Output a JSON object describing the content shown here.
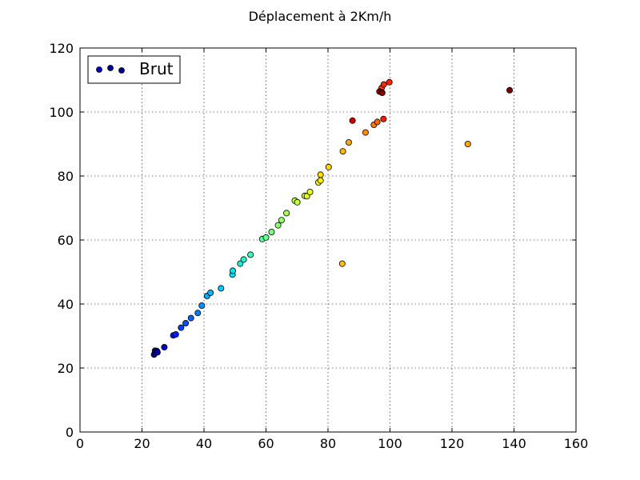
{
  "chart_data": {
    "type": "scatter",
    "title": "Déplacement à 2Km/h",
    "xlabel": "",
    "ylabel": "",
    "xlim": [
      0,
      160
    ],
    "ylim": [
      0,
      120
    ],
    "xticks": [
      0,
      20,
      40,
      60,
      80,
      100,
      120,
      140,
      160
    ],
    "yticks": [
      0,
      20,
      40,
      60,
      80,
      100,
      120
    ],
    "grid": true,
    "legend_position": "top-left",
    "colormap": "jet",
    "series": [
      {
        "name": "Brut",
        "points": [
          {
            "x": 23.9,
            "y": 24.2,
            "color": "#00007f"
          },
          {
            "x": 24.2,
            "y": 25.4,
            "color": "#00008b"
          },
          {
            "x": 24.8,
            "y": 25.3,
            "color": "#000096"
          },
          {
            "x": 25.0,
            "y": 24.9,
            "color": "#0000a8"
          },
          {
            "x": 27.2,
            "y": 26.5,
            "color": "#0000cd"
          },
          {
            "x": 30.1,
            "y": 30.2,
            "color": "#0010ff"
          },
          {
            "x": 30.9,
            "y": 30.5,
            "color": "#0020ff"
          },
          {
            "x": 32.6,
            "y": 32.6,
            "color": "#0040ff"
          },
          {
            "x": 34.1,
            "y": 34.0,
            "color": "#0050ff"
          },
          {
            "x": 35.8,
            "y": 35.6,
            "color": "#0064ff"
          },
          {
            "x": 38.0,
            "y": 37.2,
            "color": "#0080ff"
          },
          {
            "x": 39.3,
            "y": 39.5,
            "color": "#0094ff"
          },
          {
            "x": 41.0,
            "y": 42.5,
            "color": "#00acff"
          },
          {
            "x": 42.1,
            "y": 43.5,
            "color": "#00b8ff"
          },
          {
            "x": 45.5,
            "y": 44.9,
            "color": "#00ccff"
          },
          {
            "x": 49.2,
            "y": 49.2,
            "color": "#00e0f8"
          },
          {
            "x": 49.3,
            "y": 50.4,
            "color": "#0ae4ec"
          },
          {
            "x": 51.7,
            "y": 52.6,
            "color": "#1aecdc"
          },
          {
            "x": 52.8,
            "y": 53.9,
            "color": "#26f4d0"
          },
          {
            "x": 55.0,
            "y": 55.4,
            "color": "#36fcc0"
          },
          {
            "x": 58.8,
            "y": 60.3,
            "color": "#56ffa0"
          },
          {
            "x": 60.0,
            "y": 60.8,
            "color": "#66ff90"
          },
          {
            "x": 61.8,
            "y": 62.5,
            "color": "#76ff80"
          },
          {
            "x": 63.9,
            "y": 64.6,
            "color": "#86ff70"
          },
          {
            "x": 65.0,
            "y": 66.2,
            "color": "#96ff60"
          },
          {
            "x": 66.6,
            "y": 68.4,
            "color": "#a6ff50"
          },
          {
            "x": 69.3,
            "y": 72.3,
            "color": "#b6ff40"
          },
          {
            "x": 70.1,
            "y": 71.8,
            "color": "#c0ff36"
          },
          {
            "x": 72.5,
            "y": 73.8,
            "color": "#d0ff26"
          },
          {
            "x": 73.2,
            "y": 73.7,
            "color": "#dcff1a"
          },
          {
            "x": 74.2,
            "y": 75.0,
            "color": "#e8ff0e"
          },
          {
            "x": 76.9,
            "y": 78.0,
            "color": "#f8f500"
          },
          {
            "x": 77.6,
            "y": 78.6,
            "color": "#fcec00"
          },
          {
            "x": 77.6,
            "y": 80.4,
            "color": "#ffde00"
          },
          {
            "x": 80.2,
            "y": 82.8,
            "color": "#ffd400"
          },
          {
            "x": 84.6,
            "y": 52.6,
            "color": "#ffbf00"
          },
          {
            "x": 84.8,
            "y": 87.7,
            "color": "#ffb800"
          },
          {
            "x": 86.7,
            "y": 90.5,
            "color": "#ffa800"
          },
          {
            "x": 92.1,
            "y": 93.6,
            "color": "#ff8c00"
          },
          {
            "x": 94.8,
            "y": 96.0,
            "color": "#ff7800"
          },
          {
            "x": 95.9,
            "y": 96.9,
            "color": "#ff6800"
          },
          {
            "x": 87.9,
            "y": 97.3,
            "color": "#d40000"
          },
          {
            "x": 97.9,
            "y": 97.8,
            "color": "#ff1a00"
          },
          {
            "x": 97.3,
            "y": 107.5,
            "color": "#ff3800"
          },
          {
            "x": 98.0,
            "y": 108.6,
            "color": "#f42c00"
          },
          {
            "x": 99.8,
            "y": 109.3,
            "color": "#ff2000"
          },
          {
            "x": 96.6,
            "y": 106.4,
            "color": "#b00000"
          },
          {
            "x": 97.2,
            "y": 106.2,
            "color": "#9a0000"
          },
          {
            "x": 97.5,
            "y": 106.0,
            "color": "#8a0000"
          },
          {
            "x": 125.1,
            "y": 90.0,
            "color": "#ffa800"
          },
          {
            "x": 138.6,
            "y": 106.8,
            "color": "#7f0000"
          }
        ]
      }
    ],
    "legend": {
      "label": "Brut",
      "marker_colors": [
        "#0000d0",
        "#0000a0",
        "#000090"
      ]
    }
  }
}
